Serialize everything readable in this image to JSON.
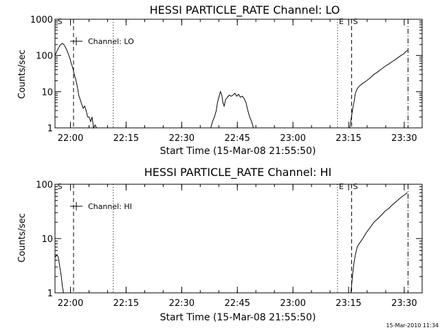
{
  "footer": {
    "timestamp": "15-Mar-2010 11:34"
  },
  "chart_data": [
    {
      "type": "line",
      "title": "HESSI PARTICLE_RATE Channel: LO",
      "xlabel": "Start Time (15-Mar-08 21:55:50)",
      "ylabel": "Counts/sec",
      "x_units": "minutes after 21:55:50",
      "xlim": [
        0,
        99
      ],
      "ylim": [
        1,
        1000
      ],
      "yscale": "log",
      "x_ticks": [
        {
          "x": 4.17,
          "label": "22:00"
        },
        {
          "x": 19.17,
          "label": "22:15"
        },
        {
          "x": 34.17,
          "label": "22:30"
        },
        {
          "x": 49.17,
          "label": "22:45"
        },
        {
          "x": 64.17,
          "label": "23:00"
        },
        {
          "x": 79.17,
          "label": "23:15"
        },
        {
          "x": 94.17,
          "label": "23:30"
        }
      ],
      "y_ticks": [
        {
          "y": 1,
          "label": "1"
        },
        {
          "y": 10,
          "label": "10"
        },
        {
          "y": 100,
          "label": "100"
        },
        {
          "y": 1000,
          "label": "1000"
        }
      ],
      "legend": {
        "label": "Channel: LO",
        "position": "top-left"
      },
      "markers": [
        {
          "x": 0.3,
          "style": "none",
          "label": "S"
        },
        {
          "x": 5.0,
          "style": "dashed",
          "label": ""
        },
        {
          "x": 15.7,
          "style": "dotted",
          "label": ""
        },
        {
          "x": 76.2,
          "style": "dotted",
          "label": "E"
        },
        {
          "x": 80.0,
          "style": "dashed",
          "label": "S"
        },
        {
          "x": 95.2,
          "style": "dashdot",
          "label": ""
        }
      ],
      "series": [
        {
          "values": [
            [
              0.0,
              100
            ],
            [
              0.5,
              130
            ],
            [
              1.0,
              165
            ],
            [
              1.5,
              200
            ],
            [
              2.0,
              215
            ],
            [
              2.4,
              200
            ],
            [
              2.8,
              170
            ],
            [
              3.2,
              140
            ],
            [
              3.6,
              110
            ],
            [
              4.0,
              85
            ],
            [
              4.4,
              60
            ],
            [
              4.8,
              45
            ],
            [
              5.2,
              30
            ],
            [
              5.6,
              22
            ],
            [
              6.0,
              14
            ],
            [
              6.4,
              8
            ],
            [
              6.8,
              6
            ],
            [
              7.2,
              4.5
            ],
            [
              7.6,
              3.5
            ],
            [
              8.0,
              4
            ],
            [
              8.4,
              3
            ],
            [
              8.8,
              2
            ],
            [
              9.2,
              2
            ],
            [
              9.6,
              1.5
            ],
            [
              10.0,
              2
            ],
            [
              10.4,
              1
            ],
            [
              10.8,
              1.2
            ],
            [
              11.2,
              1
            ],
            [
              11.6,
              1
            ],
            [
              12.0,
              1
            ],
            [
              12.4,
              1
            ],
            [
              12.8,
              1
            ],
            [
              13.2,
              1
            ],
            [
              13.6,
              1
            ],
            [
              14.0,
              1
            ],
            [
              14.4,
              1
            ],
            [
              14.8,
              1
            ],
            [
              15.2,
              1
            ],
            [
              15.6,
              1
            ],
            [
              16.0,
              1
            ],
            [
              16.4,
              1
            ],
            [
              16.8,
              1
            ],
            [
              17.2,
              1
            ],
            [
              17.6,
              1
            ],
            [
              18.0,
              1
            ],
            [
              41.0,
              1
            ],
            [
              42.0,
              1
            ],
            [
              42.5,
              1.5
            ],
            [
              43.0,
              2
            ],
            [
              43.5,
              3
            ],
            [
              43.8,
              5
            ],
            [
              44.2,
              7
            ],
            [
              44.6,
              10
            ],
            [
              45.0,
              8
            ],
            [
              45.3,
              5
            ],
            [
              45.6,
              4
            ],
            [
              46.0,
              6
            ],
            [
              46.5,
              7
            ],
            [
              47.0,
              8
            ],
            [
              47.5,
              7.5
            ],
            [
              48.0,
              8
            ],
            [
              48.5,
              9
            ],
            [
              49.0,
              7.5
            ],
            [
              49.5,
              8.5
            ],
            [
              50.0,
              7
            ],
            [
              50.5,
              7.5
            ],
            [
              51.0,
              6.5
            ],
            [
              51.5,
              5
            ],
            [
              52.0,
              3
            ],
            [
              52.5,
              2
            ],
            [
              53.0,
              1.5
            ],
            [
              53.5,
              1
            ],
            [
              79.5,
              1
            ],
            [
              79.8,
              1.6
            ],
            [
              80.2,
              3
            ],
            [
              80.6,
              5
            ],
            [
              81.0,
              9
            ],
            [
              81.5,
              12
            ],
            [
              82.0,
              14
            ],
            [
              83.0,
              17
            ],
            [
              84.0,
              20
            ],
            [
              85.0,
              24
            ],
            [
              86.0,
              30
            ],
            [
              87.0,
              35
            ],
            [
              88.0,
              42
            ],
            [
              89.0,
              50
            ],
            [
              90.0,
              58
            ],
            [
              91.0,
              68
            ],
            [
              92.0,
              80
            ],
            [
              93.0,
              95
            ],
            [
              94.0,
              110
            ],
            [
              95.0,
              140
            ]
          ]
        }
      ]
    },
    {
      "type": "line",
      "title": "HESSI PARTICLE_RATE Channel: HI",
      "xlabel": "Start Time (15-Mar-08 21:55:50)",
      "ylabel": "Counts/sec",
      "x_units": "minutes after 21:55:50",
      "xlim": [
        0,
        99
      ],
      "ylim": [
        1,
        100
      ],
      "yscale": "log",
      "x_ticks": [
        {
          "x": 4.17,
          "label": "22:00"
        },
        {
          "x": 19.17,
          "label": "22:15"
        },
        {
          "x": 34.17,
          "label": "22:30"
        },
        {
          "x": 49.17,
          "label": "22:45"
        },
        {
          "x": 64.17,
          "label": "23:00"
        },
        {
          "x": 79.17,
          "label": "23:15"
        },
        {
          "x": 94.17,
          "label": "23:30"
        }
      ],
      "y_ticks": [
        {
          "y": 1,
          "label": "1"
        },
        {
          "y": 10,
          "label": "10"
        },
        {
          "y": 100,
          "label": "100"
        }
      ],
      "legend": {
        "label": "Channel: HI",
        "position": "top-left"
      },
      "markers": [
        {
          "x": 0.3,
          "style": "none",
          "label": "S"
        },
        {
          "x": 5.0,
          "style": "dashed",
          "label": ""
        },
        {
          "x": 15.7,
          "style": "dotted",
          "label": ""
        },
        {
          "x": 76.2,
          "style": "dotted",
          "label": "E"
        },
        {
          "x": 80.0,
          "style": "dashed",
          "label": "S"
        },
        {
          "x": 95.2,
          "style": "dashdot",
          "label": ""
        }
      ],
      "series": [
        {
          "values": [
            [
              0.0,
              4.5
            ],
            [
              0.5,
              5
            ],
            [
              0.9,
              4.5
            ],
            [
              1.3,
              3
            ],
            [
              1.7,
              2
            ],
            [
              2.0,
              1.3
            ],
            [
              2.3,
              1
            ],
            [
              79.8,
              1
            ],
            [
              80.2,
              2
            ],
            [
              80.6,
              3.5
            ],
            [
              81.0,
              5
            ],
            [
              81.5,
              7
            ],
            [
              82.0,
              8
            ],
            [
              83.0,
              10
            ],
            [
              84.0,
              13
            ],
            [
              85.0,
              16
            ],
            [
              86.0,
              20
            ],
            [
              87.0,
              23
            ],
            [
              88.0,
              27
            ],
            [
              89.0,
              32
            ],
            [
              90.0,
              36
            ],
            [
              91.0,
              42
            ],
            [
              92.0,
              48
            ],
            [
              93.0,
              55
            ],
            [
              94.0,
              62
            ],
            [
              95.0,
              70
            ]
          ]
        }
      ]
    }
  ]
}
